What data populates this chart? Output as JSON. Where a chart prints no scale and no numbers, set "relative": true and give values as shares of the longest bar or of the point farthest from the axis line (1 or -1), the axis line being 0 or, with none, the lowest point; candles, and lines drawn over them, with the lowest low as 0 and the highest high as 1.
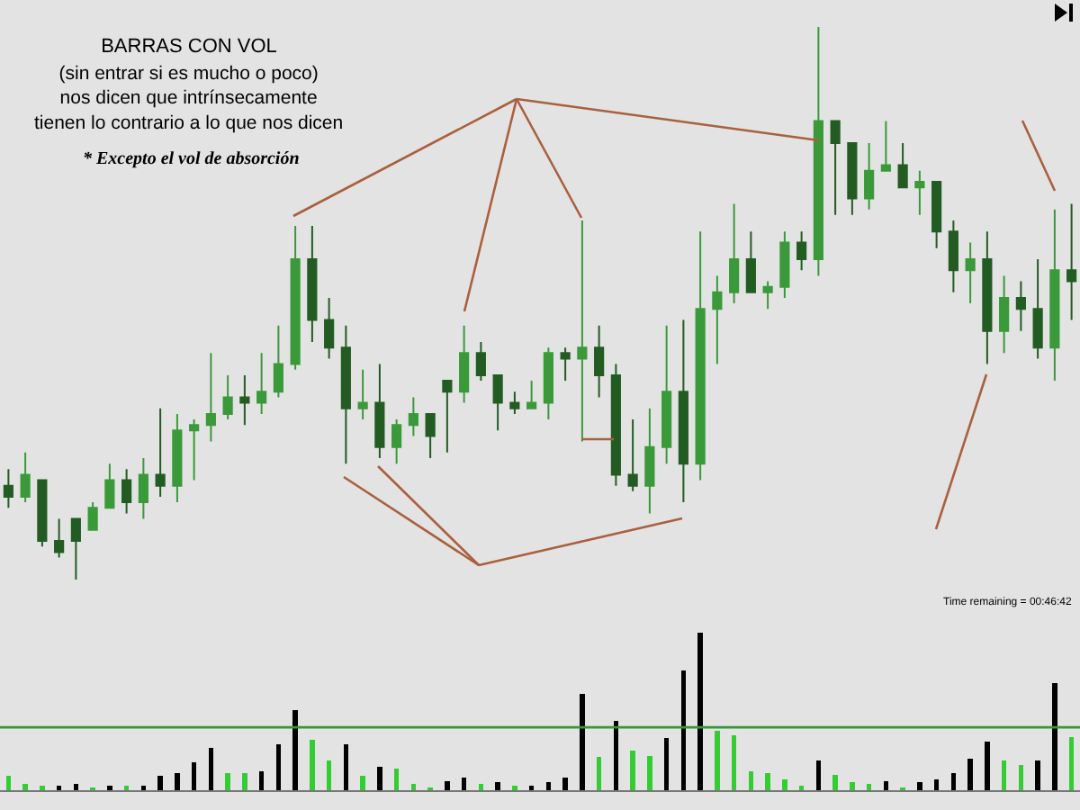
{
  "chart_data": [
    {
      "type": "candlestick",
      "relative": true,
      "colors": [
        "#235c23",
        "#3a9a3a",
        "#235c23",
        "#235c23",
        "#235c23",
        "#3a9a3a",
        "#3a9a3a",
        "#235c23",
        "#3a9a3a",
        "#235c23",
        "#3a9a3a",
        "#3a9a3a",
        "#3a9a3a",
        "#3a9a3a",
        "#235c23",
        "#3a9a3a",
        "#3a9a3a",
        "#3a9a3a",
        "#235c23",
        "#235c23",
        "#235c23",
        "#3a9a3a",
        "#235c23",
        "#3a9a3a",
        "#3a9a3a",
        "#235c23",
        "#235c23",
        "#3a9a3a",
        "#235c23",
        "#235c23",
        "#235c23",
        "#3a9a3a",
        "#3a9a3a",
        "#235c23",
        "#3a9a3a",
        "#235c23",
        "#235c23",
        "#235c23",
        "#3a9a3a",
        "#3a9a3a",
        "#235c23",
        "#3a9a3a",
        "#3a9a3a",
        "#3a9a3a",
        "#235c23",
        "#3a9a3a",
        "#3a9a3a",
        "#235c23",
        "#3a9a3a",
        "#235c23",
        "#235c23",
        "#3a9a3a",
        "#3a9a3a",
        "#235c23",
        "#3a9a3a",
        "#235c23",
        "#235c23",
        "#3a9a3a",
        "#235c23",
        "#3a9a3a",
        "#235c23",
        "#235c23",
        "#3a9a3a",
        "#235c23"
      ],
      "title": "BARRAS CON VOL",
      "subtitle": "(sin entrar si es mucho o poco)\nnos dicen que intrínsecamente\ntienen lo contrario a lo que nos dicen",
      "annotations": [
        "* Excepto el vol de absorción",
        "Time remaining = 00:46:42"
      ],
      "categories": [
        null,
        null,
        null,
        null,
        null,
        null,
        null,
        null,
        null,
        null,
        null,
        null,
        null,
        null,
        null,
        null,
        null,
        null,
        null,
        null,
        null,
        null,
        null,
        null,
        null,
        null,
        null,
        null,
        null,
        null,
        null,
        null,
        null,
        null,
        null,
        null,
        null,
        null,
        null,
        null,
        null,
        null,
        null,
        null,
        null,
        null,
        null,
        null,
        null,
        null,
        null,
        null,
        null,
        null,
        null,
        null,
        null,
        null,
        null,
        null,
        null,
        null,
        null,
        null
      ],
      "ohlc": [
        [
          0.17,
          0.2,
          0.13,
          0.15
        ],
        [
          0.15,
          0.23,
          0.14,
          0.19
        ],
        [
          0.18,
          0.18,
          0.06,
          0.07
        ],
        [
          0.07,
          0.11,
          0.04,
          0.05
        ],
        [
          0.11,
          0.11,
          0,
          0.07
        ],
        [
          0.09,
          0.14,
          0.09,
          0.13
        ],
        [
          0.13,
          0.21,
          0.13,
          0.18
        ],
        [
          0.18,
          0.2,
          0.12,
          0.14
        ],
        [
          0.14,
          0.22,
          0.11,
          0.19
        ],
        [
          0.19,
          0.31,
          0.15,
          0.17
        ],
        [
          0.17,
          0.3,
          0.14,
          0.27
        ],
        [
          0.27,
          0.29,
          0.18,
          0.28
        ],
        [
          0.28,
          0.41,
          0.25,
          0.3
        ],
        [
          0.3,
          0.37,
          0.29,
          0.33
        ],
        [
          0.33,
          0.37,
          0.28,
          0.32
        ],
        [
          0.32,
          0.41,
          0.3,
          0.34
        ],
        [
          0.34,
          0.46,
          0.33,
          0.39
        ],
        [
          0.39,
          0.64,
          0.38,
          0.58
        ],
        [
          0.58,
          0.64,
          0.43,
          0.47
        ],
        [
          0.47,
          0.51,
          0.4,
          0.42
        ],
        [
          0.42,
          0.46,
          0.21,
          0.31
        ],
        [
          0.31,
          0.38,
          0.29,
          0.32
        ],
        [
          0.32,
          0.39,
          0.22,
          0.24
        ],
        [
          0.24,
          0.29,
          0.21,
          0.28
        ],
        [
          0.28,
          0.33,
          0.26,
          0.3
        ],
        [
          0.3,
          0.3,
          0.22,
          0.26
        ],
        [
          0.36,
          0.36,
          0.23,
          0.34
        ],
        [
          0.34,
          0.46,
          0.32,
          0.41
        ],
        [
          0.41,
          0.43,
          0.36,
          0.37
        ],
        [
          0.37,
          0.37,
          0.27,
          0.32
        ],
        [
          0.32,
          0.34,
          0.3,
          0.31
        ],
        [
          0.31,
          0.36,
          0.31,
          0.32
        ],
        [
          0.32,
          0.42,
          0.29,
          0.41
        ],
        [
          0.41,
          0.42,
          0.36,
          0.4
        ],
        [
          0.4,
          0.65,
          0.25,
          0.42
        ],
        [
          0.42,
          0.46,
          0.33,
          0.37
        ],
        [
          0.37,
          0.39,
          0.17,
          0.19
        ],
        [
          0.19,
          0.29,
          0.16,
          0.17
        ],
        [
          0.17,
          0.31,
          0.12,
          0.24
        ],
        [
          0.24,
          0.46,
          0.21,
          0.34
        ],
        [
          0.34,
          0.47,
          0.14,
          0.21
        ],
        [
          0.21,
          0.63,
          0.18,
          0.49
        ],
        [
          0.49,
          0.55,
          0.39,
          0.52
        ],
        [
          0.52,
          0.68,
          0.5,
          0.58
        ],
        [
          0.58,
          0.63,
          0.52,
          0.52
        ],
        [
          0.52,
          0.54,
          0.49,
          0.53
        ],
        [
          0.53,
          0.63,
          0.51,
          0.61
        ],
        [
          0.61,
          0.63,
          0.56,
          0.58
        ],
        [
          0.58,
          1,
          0.55,
          0.83
        ],
        [
          0.83,
          0.83,
          0.66,
          0.79
        ],
        [
          0.79,
          0.79,
          0.66,
          0.69
        ],
        [
          0.69,
          0.79,
          0.67,
          0.74
        ],
        [
          0.74,
          0.83,
          0.74,
          0.75
        ],
        [
          0.75,
          0.79,
          0.71,
          0.71
        ],
        [
          0.71,
          0.74,
          0.66,
          0.72
        ],
        [
          0.72,
          0.72,
          0.6,
          0.63
        ],
        [
          0.63,
          0.65,
          0.52,
          0.56
        ],
        [
          0.56,
          0.61,
          0.5,
          0.58
        ],
        [
          0.58,
          0.63,
          0.39,
          0.45
        ],
        [
          0.45,
          0.55,
          0.41,
          0.51
        ],
        [
          0.51,
          0.54,
          0.45,
          0.49
        ],
        [
          0.49,
          0.58,
          0.4,
          0.42
        ],
        [
          0.42,
          0.67,
          0.36,
          0.56
        ],
        [
          0.56,
          0.68,
          0.47,
          0.54
        ]
      ]
    },
    {
      "type": "bar",
      "relative": true,
      "categories": [
        null,
        null,
        null,
        null,
        null,
        null,
        null,
        null,
        null,
        null,
        null,
        null,
        null,
        null,
        null,
        null,
        null,
        null,
        null,
        null,
        null,
        null,
        null,
        null,
        null,
        null,
        null,
        null,
        null,
        null,
        null,
        null,
        null,
        null,
        null,
        null,
        null,
        null,
        null,
        null,
        null,
        null,
        null,
        null,
        null,
        null,
        null,
        null,
        null,
        null,
        null,
        null,
        null,
        null,
        null,
        null,
        null,
        null,
        null,
        null,
        null,
        null,
        null,
        null
      ],
      "values": [
        0.09,
        0.04,
        0.03,
        0.03,
        0.04,
        0.02,
        0.03,
        0.03,
        0.03,
        0.09,
        0.11,
        0.18,
        0.27,
        0.11,
        0.11,
        0.12,
        0.29,
        0.51,
        0.32,
        0.19,
        0.29,
        0.09,
        0.15,
        0.14,
        0.04,
        0.02,
        0.06,
        0.08,
        0.04,
        0.05,
        0.03,
        0.03,
        0.05,
        0.08,
        0.61,
        0.21,
        0.44,
        0.25,
        0.22,
        0.33,
        0.76,
        1,
        0.38,
        0.35,
        0.12,
        0.11,
        0.07,
        0.03,
        0.19,
        0.1,
        0.05,
        0.04,
        0.06,
        0.02,
        0.05,
        0.07,
        0.11,
        0.2,
        0.31,
        0.19,
        0.16,
        0.19,
        0.68,
        0.34
      ],
      "colors": [
        "#33cc33",
        "#33cc33",
        "#33cc33",
        "#000000",
        "#000000",
        "#33cc33",
        "#000000",
        "#33cc33",
        "#000000",
        "#000000",
        "#000000",
        "#000000",
        "#000000",
        "#33cc33",
        "#33cc33",
        "#000000",
        "#000000",
        "#000000",
        "#33cc33",
        "#33cc33",
        "#000000",
        "#33cc33",
        "#000000",
        "#33cc33",
        "#33cc33",
        "#33cc33",
        "#000000",
        "#000000",
        "#33cc33",
        "#000000",
        "#33cc33",
        "#000000",
        "#000000",
        "#000000",
        "#000000",
        "#33cc33",
        "#000000",
        "#33cc33",
        "#33cc33",
        "#000000",
        "#000000",
        "#000000",
        "#33cc33",
        "#33cc33",
        "#33cc33",
        "#33cc33",
        "#33cc33",
        "#33cc33",
        "#000000",
        "#33cc33",
        "#33cc33",
        "#33cc33",
        "#000000",
        "#33cc33",
        "#000000",
        "#000000",
        "#000000",
        "#000000",
        "#000000",
        "#33cc33",
        "#33cc33",
        "#000000",
        "#000000",
        "#33cc33"
      ],
      "ref_lines": [
        {
          "axis": "y",
          "value": 0.4,
          "color": "#2e9e2e"
        }
      ]
    }
  ]
}
